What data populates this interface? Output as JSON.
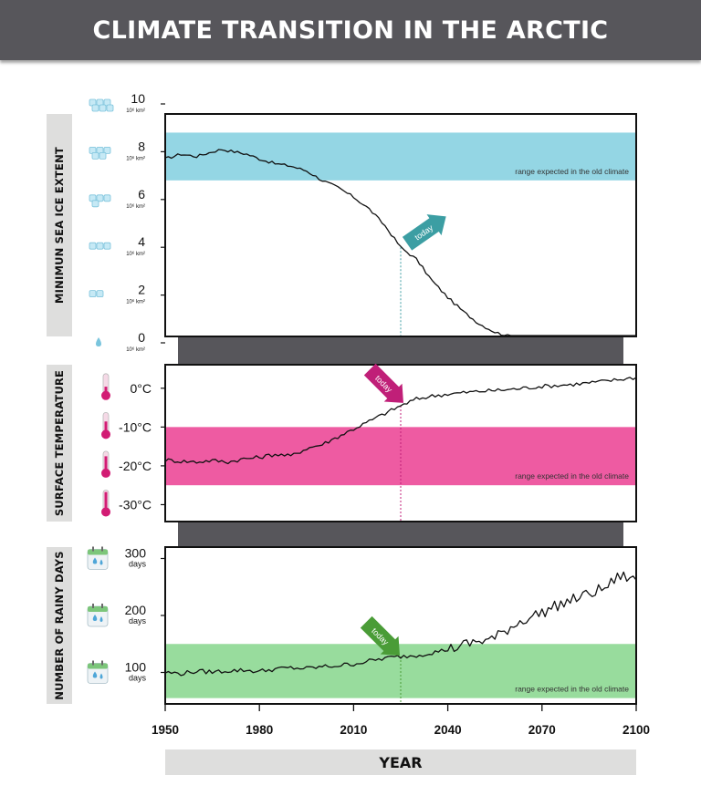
{
  "header": {
    "title": "CLIMATE TRANSITION IN THE ARCTIC"
  },
  "x_axis": {
    "label": "YEAR",
    "ticks": [
      "1950",
      "1980",
      "2010",
      "2040",
      "2070",
      "2100"
    ]
  },
  "today_label": "today",
  "range_note": "range expected in the old climate",
  "colors": {
    "ice": "#94d6e4",
    "temp": "#ee5ba2",
    "rain": "#98dc9d",
    "ice_arrow": "#3c9ea3",
    "temp_arrow": "#c01f78",
    "rain_arrow": "#4a9c37",
    "connector": "#57565b",
    "header": "#57565b"
  },
  "icons": {
    "ice": "ice-cubes-icon",
    "temp": "thermometer-icon",
    "rain": "calendar-raindrop-icon"
  },
  "chart_data": [
    {
      "type": "line",
      "ylabel": "MINIMUN SEA ICE EXTENT",
      "ylim": [
        0,
        10
      ],
      "xlim": [
        1950,
        2100
      ],
      "y_ticks": [
        {
          "value": 10,
          "label": "10",
          "unit": "10⁶ km²"
        },
        {
          "value": 8,
          "label": "8",
          "unit": "10⁶ km²"
        },
        {
          "value": 6,
          "label": "6",
          "unit": "10⁶ km²"
        },
        {
          "value": 4,
          "label": "4",
          "unit": "10⁶ km²"
        },
        {
          "value": 2,
          "label": "2",
          "unit": "10⁶ km²"
        },
        {
          "value": 0,
          "label": "0",
          "unit": "10⁶ km²"
        }
      ],
      "band": [
        6.8,
        8.8
      ],
      "today_year": 2025,
      "x": [
        1950,
        1955,
        1960,
        1965,
        1968,
        1972,
        1976,
        1980,
        1985,
        1990,
        1995,
        2000,
        2005,
        2010,
        2015,
        2020,
        2025,
        2030,
        2035,
        2040,
        2045,
        2050,
        2055,
        2060,
        2065,
        2070,
        2075,
        2080,
        2085,
        2090,
        2095,
        2100
      ],
      "values": [
        7.7,
        7.9,
        7.8,
        8.0,
        8.1,
        8.0,
        7.9,
        7.7,
        7.5,
        7.4,
        7.2,
        6.8,
        6.5,
        6.1,
        5.6,
        4.9,
        4.0,
        3.5,
        2.6,
        1.9,
        1.3,
        0.8,
        0.45,
        0.25,
        0.12,
        0.05,
        0.02,
        0.01,
        0,
        0,
        0,
        0
      ]
    },
    {
      "type": "line",
      "ylabel": "SURFACE TEMPERATURE",
      "ylim": [
        -36,
        7
      ],
      "xlim": [
        1950,
        2100
      ],
      "y_ticks": [
        {
          "value": 0,
          "label": "0°C"
        },
        {
          "value": -10,
          "label": "-10°C"
        },
        {
          "value": -20,
          "label": "-20°C"
        },
        {
          "value": -30,
          "label": "-30°C"
        }
      ],
      "band": [
        -25,
        -10
      ],
      "today_year": 2025,
      "x": [
        1950,
        1955,
        1960,
        1965,
        1970,
        1975,
        1980,
        1985,
        1990,
        1995,
        2000,
        2005,
        2010,
        2015,
        2020,
        2025,
        2030,
        2035,
        2040,
        2050,
        2060,
        2070,
        2080,
        2090,
        2100
      ],
      "values": [
        -18.5,
        -18.8,
        -19.0,
        -18.6,
        -19.0,
        -18.2,
        -17.8,
        -17.0,
        -17.5,
        -15.5,
        -14.5,
        -12.5,
        -10.5,
        -8.5,
        -6.5,
        -4.5,
        -2.8,
        -2.0,
        -1.5,
        -0.8,
        -0.3,
        0.5,
        1.0,
        1.8,
        2.8
      ]
    },
    {
      "type": "line",
      "ylabel": "NUMBER OF RAINY DAYS",
      "ylim": [
        40,
        320
      ],
      "xlim": [
        1950,
        2100
      ],
      "y_ticks": [
        {
          "value": 300,
          "label": "300",
          "unit": "days"
        },
        {
          "value": 200,
          "label": "200",
          "unit": "days"
        },
        {
          "value": 100,
          "label": "100",
          "unit": "days"
        }
      ],
      "band": [
        55,
        150
      ],
      "today_year": 2025,
      "x": [
        1950,
        1955,
        1960,
        1965,
        1970,
        1975,
        1980,
        1985,
        1990,
        1995,
        2000,
        2005,
        2010,
        2015,
        2020,
        2025,
        2030,
        2035,
        2040,
        2045,
        2050,
        2055,
        2060,
        2065,
        2070,
        2075,
        2080,
        2085,
        2090,
        2095,
        2100
      ],
      "values": [
        100,
        98,
        102,
        101,
        103,
        104,
        102,
        106,
        108,
        107,
        110,
        112,
        115,
        120,
        125,
        128,
        130,
        135,
        140,
        148,
        155,
        160,
        180,
        195,
        205,
        218,
        228,
        238,
        248,
        270,
        262
      ]
    }
  ]
}
